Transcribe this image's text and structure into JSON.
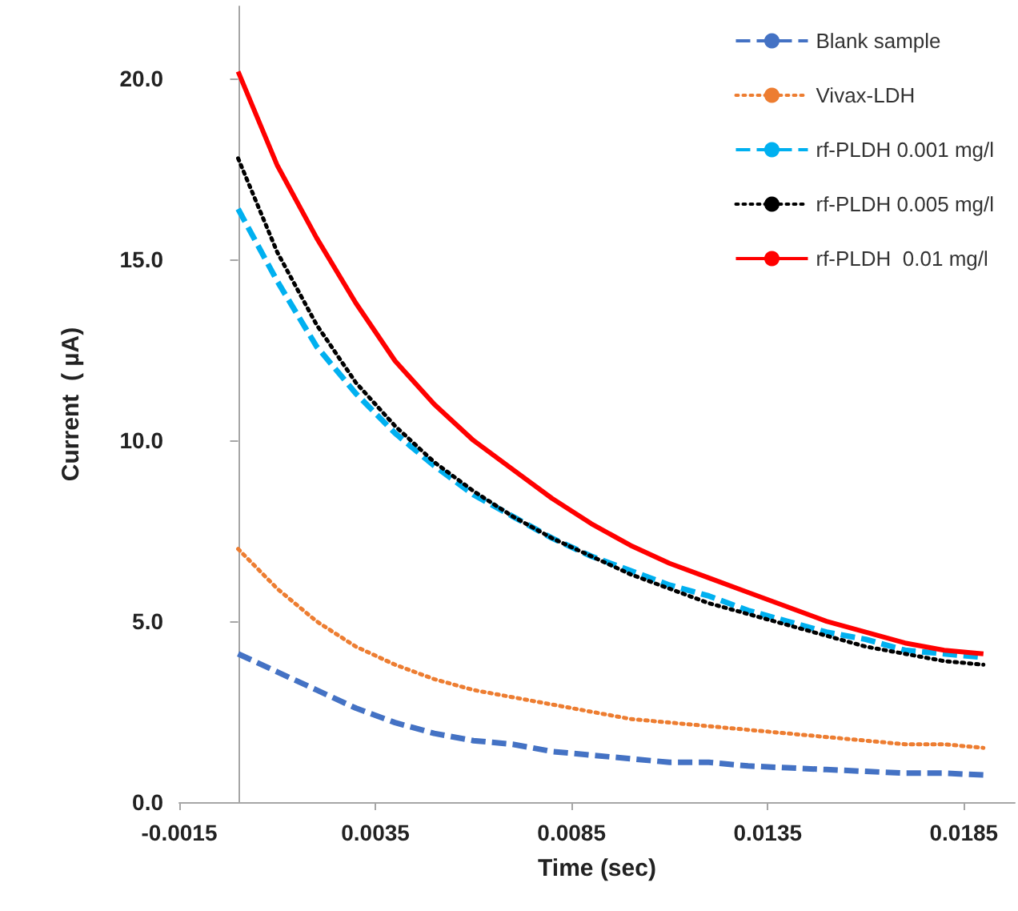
{
  "chart_data": {
    "type": "line",
    "xlabel": "Time (sec)",
    "ylabel": "Current  ( µA)",
    "x": [
      0,
      0.001,
      0.002,
      0.003,
      0.004,
      0.005,
      0.006,
      0.007,
      0.008,
      0.009,
      0.01,
      0.011,
      0.012,
      0.013,
      0.014,
      0.015,
      0.016,
      0.017,
      0.018,
      0.019
    ],
    "series": [
      {
        "name": "Blank sample",
        "color": "#4472c4",
        "line_style": "dashed",
        "values": [
          4.1,
          3.6,
          3.1,
          2.6,
          2.2,
          1.9,
          1.7,
          1.6,
          1.4,
          1.3,
          1.2,
          1.1,
          1.1,
          1.0,
          0.95,
          0.9,
          0.85,
          0.8,
          0.8,
          0.75
        ]
      },
      {
        "name": "Vivax-LDH",
        "color": "#ed7d31",
        "line_style": "dotted",
        "values": [
          7.0,
          5.9,
          5.0,
          4.3,
          3.8,
          3.4,
          3.1,
          2.9,
          2.7,
          2.5,
          2.3,
          2.2,
          2.1,
          2.0,
          1.9,
          1.8,
          1.7,
          1.6,
          1.6,
          1.5
        ]
      },
      {
        "name": "rf-PLDH 0.001 mg/l",
        "color": "#00b0f0",
        "line_style": "dashed",
        "values": [
          16.4,
          14.4,
          12.6,
          11.3,
          10.2,
          9.3,
          8.5,
          7.9,
          7.3,
          6.8,
          6.4,
          6.0,
          5.7,
          5.3,
          5.0,
          4.7,
          4.5,
          4.2,
          4.1,
          4.0
        ]
      },
      {
        "name": "rf-PLDH 0.005 mg/l",
        "color": "#000000",
        "line_style": "dotted",
        "values": [
          17.8,
          15.2,
          13.2,
          11.6,
          10.4,
          9.4,
          8.6,
          7.9,
          7.3,
          6.8,
          6.3,
          5.9,
          5.5,
          5.2,
          4.9,
          4.6,
          4.3,
          4.1,
          3.9,
          3.8
        ]
      },
      {
        "name": "rf-PLDH  0.01 mg/l",
        "color": "#ff0000",
        "line_style": "solid",
        "values": [
          20.2,
          17.6,
          15.6,
          13.8,
          12.2,
          11.0,
          10.0,
          9.2,
          8.4,
          7.7,
          7.1,
          6.6,
          6.2,
          5.8,
          5.4,
          5.0,
          4.7,
          4.4,
          4.2,
          4.1
        ]
      }
    ],
    "xlim": [
      -0.0015,
      0.0198
    ],
    "xticks": [
      -0.0015,
      0.0035,
      0.0085,
      0.0135,
      0.0185
    ],
    "ylim": [
      0,
      22
    ],
    "yticks": [
      {
        "value": 0,
        "label": "0.0"
      },
      {
        "value": 5,
        "label": "5.0"
      },
      {
        "value": 10,
        "label": "10.0"
      },
      {
        "value": 15,
        "label": "15.0"
      },
      {
        "value": 20,
        "label": "20.0"
      }
    ],
    "grid": false,
    "legend": "top right",
    "marker": "none"
  }
}
